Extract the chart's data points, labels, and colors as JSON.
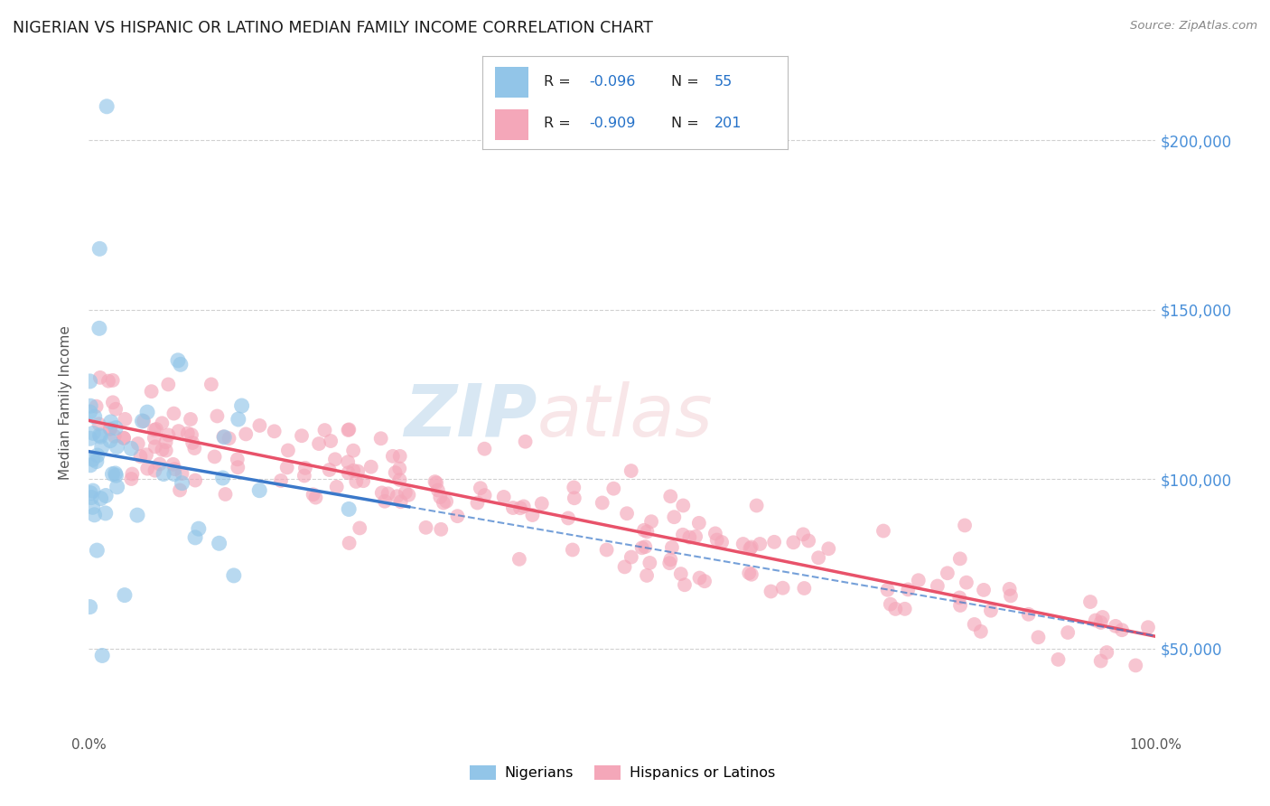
{
  "title": "NIGERIAN VS HISPANIC OR LATINO MEDIAN FAMILY INCOME CORRELATION CHART",
  "source": "Source: ZipAtlas.com",
  "ylabel": "Median Family Income",
  "y_ticks": [
    50000,
    100000,
    150000,
    200000
  ],
  "y_tick_labels": [
    "$50,000",
    "$100,000",
    "$150,000",
    "$200,000"
  ],
  "legend_label1": "Nigerians",
  "legend_label2": "Hispanics or Latinos",
  "color_blue": "#92c5e8",
  "color_pink": "#f4a7b9",
  "color_blue_line": "#3a78c9",
  "color_pink_line": "#e8526a",
  "bg_color": "#ffffff",
  "grid_color": "#cccccc",
  "xmin": 0.0,
  "xmax": 100.0,
  "ymin": 25000,
  "ymax": 220000,
  "nig_seed": 99,
  "hisp_seed": 42
}
